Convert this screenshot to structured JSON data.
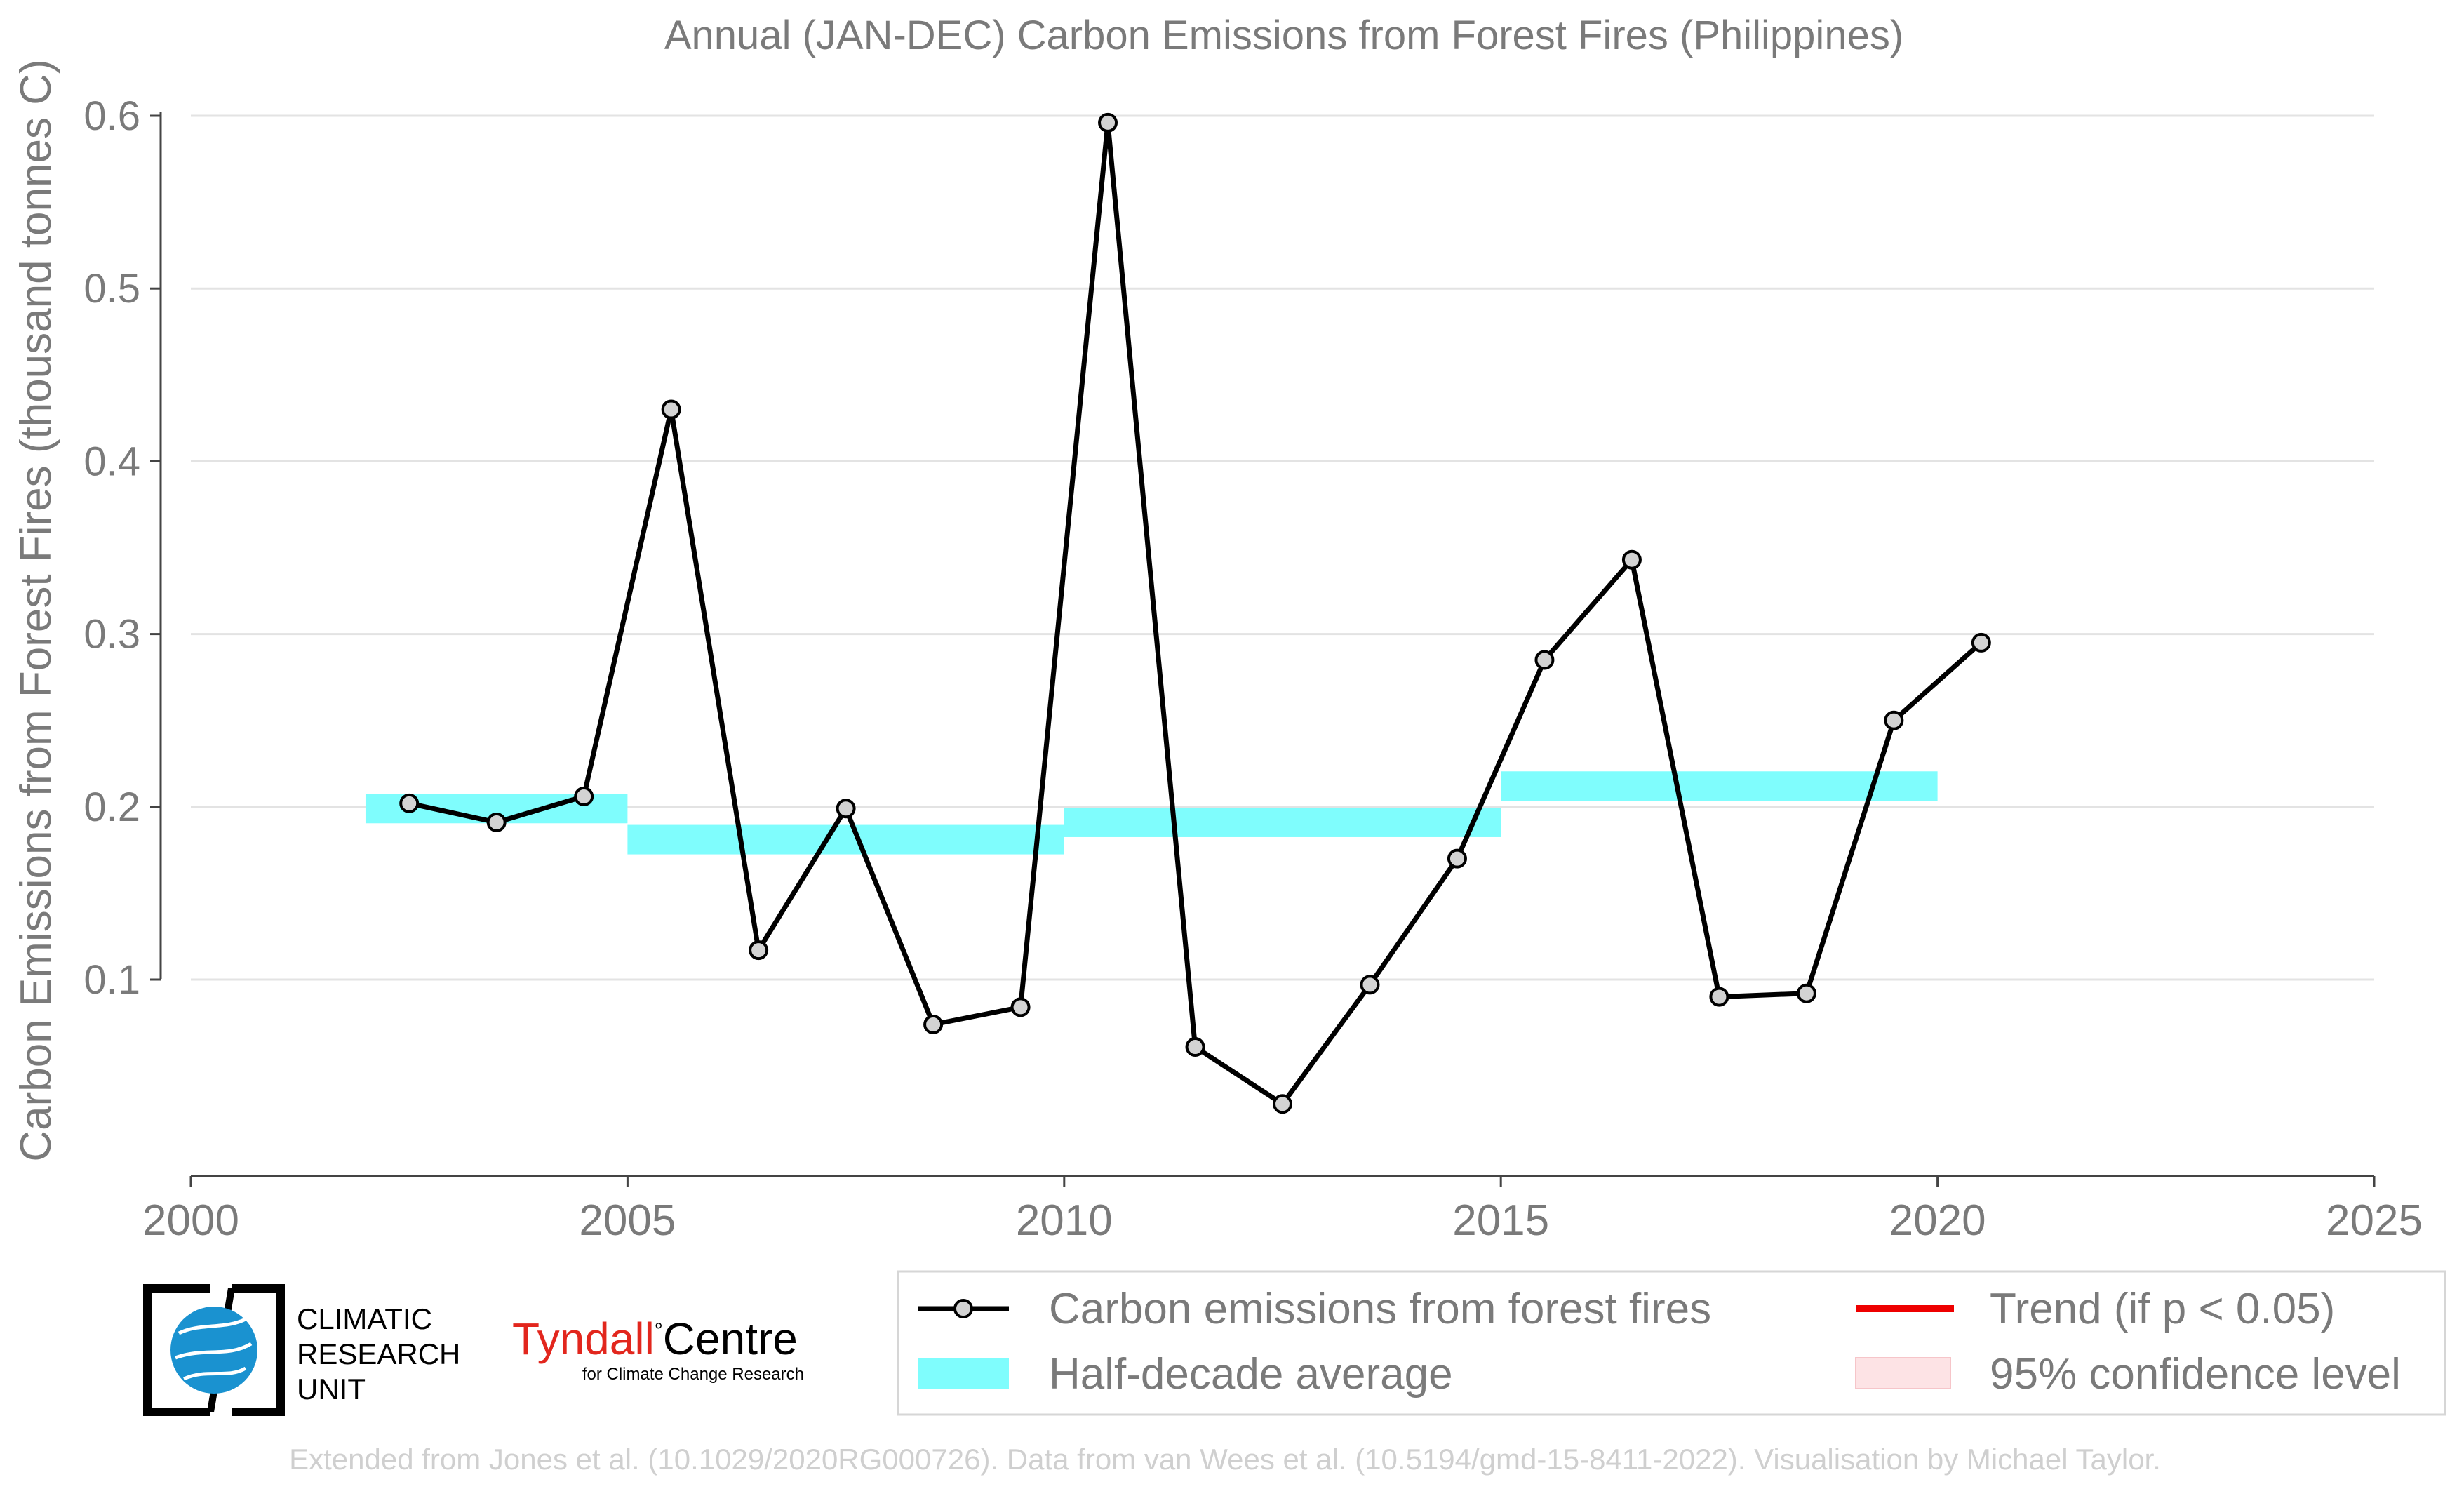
{
  "chart_data": {
    "type": "line",
    "title": "Annual (JAN-DEC) Carbon Emissions from Forest Fires (Philippines)",
    "xlabel": "",
    "ylabel": "Carbon Emissions from Forest Fires (thousand tonnes C)",
    "xlim": [
      2000,
      2025
    ],
    "ylim": [
      0,
      0.6
    ],
    "x_ticks": [
      "2000",
      "2005",
      "2010",
      "2015",
      "2020",
      "2025"
    ],
    "y_ticks": [
      "0.1",
      "0.2",
      "0.3",
      "0.4",
      "0.5",
      "0.6"
    ],
    "grid": "horizontal",
    "series": [
      {
        "name": "Carbon emissions from forest fires",
        "color": "#000000",
        "marker_fill": "#d3d3d3",
        "x": [
          2002.5,
          2003.5,
          2004.5,
          2005.5,
          2006.5,
          2007.5,
          2008.5,
          2009.5,
          2010.5,
          2011.5,
          2012.5,
          2013.5,
          2014.5,
          2015.5,
          2016.5,
          2017.5,
          2018.5,
          2019.5,
          2020.5
        ],
        "y": [
          0.202,
          0.191,
          0.206,
          0.43,
          0.117,
          0.199,
          0.074,
          0.084,
          0.596,
          0.061,
          0.028,
          0.097,
          0.17,
          0.285,
          0.343,
          0.09,
          0.092,
          0.25,
          0.295
        ]
      }
    ],
    "half_decade_average": {
      "name": "Half-decade average",
      "color": "#7ffdfd",
      "segments": [
        {
          "x_start": 2002,
          "x_end": 2005,
          "value": 0.199
        },
        {
          "x_start": 2005,
          "x_end": 2010,
          "value": 0.181
        },
        {
          "x_start": 2010,
          "x_end": 2015,
          "value": 0.191
        },
        {
          "x_start": 2015,
          "x_end": 2020,
          "value": 0.212
        }
      ]
    },
    "legend": {
      "placement": "bottom-right",
      "entries": [
        {
          "label": "Carbon emissions from forest fires",
          "style": "line-marker",
          "color": "#000000"
        },
        {
          "label": "Half-decade average",
          "style": "band",
          "color": "#7ffdfd"
        },
        {
          "label": "Trend (if p < 0.05)",
          "style": "line",
          "color": "#ee0000"
        },
        {
          "label": "95% confidence level",
          "style": "patch",
          "color": "#fde3e5"
        }
      ]
    }
  },
  "logos": {
    "cru_lines": [
      "CLIMATIC",
      "RESEARCH",
      "UNIT"
    ],
    "tyndall_name": "Tyndall",
    "tyndall_centre": "Centre",
    "tyndall_sub": "for Climate Change Research"
  },
  "credit": "Extended from Jones et al. (10.1029/2020RG000726). Data from van Wees et al. (10.5194/gmd-15-8411-2022). Visualisation by Michael Taylor.",
  "colors": {
    "text": "#7a7a7a",
    "grid": "#e3e3e3",
    "credit": "#cfcfcf",
    "cru_blue": "#1a92d0",
    "tyndall_red": "#e2261d"
  }
}
